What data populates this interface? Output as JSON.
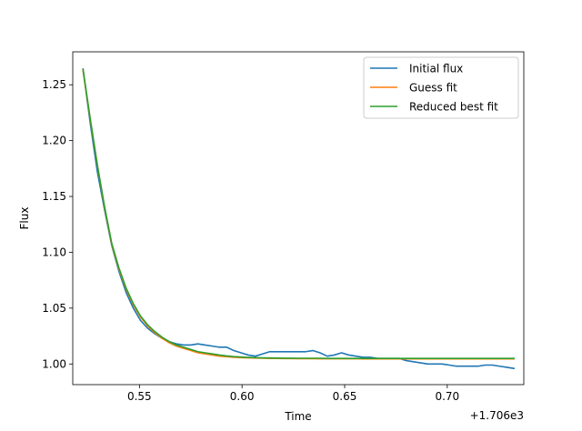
{
  "chart_data": {
    "type": "line",
    "title": "",
    "xlabel": "Time",
    "ylabel": "Flux",
    "x_offset_label": "+1.706e3",
    "xlim": [
      0.5175,
      0.7373
    ],
    "ylim": [
      0.9815,
      1.2795
    ],
    "x_ticks": [
      0.55,
      0.6,
      0.65,
      0.7
    ],
    "x_tick_labels": [
      "0.55",
      "0.60",
      "0.65",
      "0.70"
    ],
    "y_ticks": [
      1.0,
      1.05,
      1.1,
      1.15,
      1.2,
      1.25
    ],
    "y_tick_labels": [
      "1.00",
      "1.05",
      "1.10",
      "1.15",
      "1.20",
      "1.25"
    ],
    "grid": false,
    "legend_position": "upper right",
    "x": [
      0.5225,
      0.526,
      0.5295,
      0.533,
      0.5365,
      0.54,
      0.5435,
      0.547,
      0.5505,
      0.554,
      0.5575,
      0.561,
      0.5645,
      0.568,
      0.5715,
      0.575,
      0.5785,
      0.582,
      0.5855,
      0.589,
      0.5925,
      0.596,
      0.5995,
      0.603,
      0.6065,
      0.61,
      0.6135,
      0.617,
      0.6205,
      0.624,
      0.6275,
      0.631,
      0.6345,
      0.638,
      0.6415,
      0.645,
      0.6485,
      0.652,
      0.6555,
      0.659,
      0.6625,
      0.666,
      0.6695,
      0.673,
      0.6765,
      0.68,
      0.6835,
      0.687,
      0.6905,
      0.694,
      0.6975,
      0.701,
      0.7045,
      0.708,
      0.7115,
      0.715,
      0.7185,
      0.722,
      0.7255,
      0.729,
      0.7325
    ],
    "series": [
      {
        "name": "Initial flux",
        "color": "#1f77b4",
        "values": [
          1.264,
          1.216,
          1.172,
          1.138,
          1.106,
          1.083,
          1.064,
          1.05,
          1.039,
          1.032,
          1.027,
          1.023,
          1.02,
          1.018,
          1.017,
          1.017,
          1.018,
          1.017,
          1.016,
          1.015,
          1.015,
          1.012,
          1.01,
          1.008,
          1.007,
          1.009,
          1.011,
          1.011,
          1.011,
          1.011,
          1.011,
          1.011,
          1.012,
          1.01,
          1.007,
          1.008,
          1.01,
          1.008,
          1.007,
          1.006,
          1.006,
          1.005,
          1.005,
          1.005,
          1.005,
          1.003,
          1.002,
          1.001,
          1.0,
          1.0,
          1.0,
          0.999,
          0.998,
          0.998,
          0.998,
          0.998,
          0.999,
          0.999,
          0.998,
          0.997,
          0.996
        ]
      },
      {
        "name": "Guess fit",
        "color": "#ff7f0e",
        "values": [
          1.263,
          1.219,
          1.178,
          1.14,
          1.107,
          1.085,
          1.067,
          1.053,
          1.042,
          1.034,
          1.028,
          1.023,
          1.019,
          1.016,
          1.014,
          1.012,
          1.01,
          1.009,
          1.008,
          1.007,
          1.0065,
          1.006,
          1.0057,
          1.0055,
          1.0053,
          1.0051,
          1.005,
          1.0049,
          1.0048,
          1.0048,
          1.0047,
          1.0047,
          1.0047,
          1.0046,
          1.0046,
          1.0046,
          1.0046,
          1.0046,
          1.0046,
          1.0045,
          1.0045,
          1.0045,
          1.0045,
          1.0045,
          1.0045,
          1.0045,
          1.0045,
          1.0045,
          1.0045,
          1.0045,
          1.0045,
          1.0045,
          1.0045,
          1.0045,
          1.0045,
          1.0045,
          1.0045,
          1.0045,
          1.0045,
          1.0045,
          1.0045
        ]
      },
      {
        "name": "Reduced best fit",
        "color": "#2ca02c",
        "values": [
          1.264,
          1.22,
          1.178,
          1.141,
          1.108,
          1.086,
          1.068,
          1.054,
          1.043,
          1.035,
          1.029,
          1.024,
          1.02,
          1.017,
          1.015,
          1.013,
          1.011,
          1.01,
          1.009,
          1.008,
          1.0072,
          1.0066,
          1.0062,
          1.0059,
          1.0057,
          1.0055,
          1.0054,
          1.0053,
          1.0052,
          1.0052,
          1.0051,
          1.0051,
          1.0051,
          1.0051,
          1.005,
          1.005,
          1.005,
          1.005,
          1.005,
          1.005,
          1.005,
          1.005,
          1.005,
          1.005,
          1.005,
          1.005,
          1.005,
          1.005,
          1.005,
          1.005,
          1.005,
          1.005,
          1.005,
          1.005,
          1.005,
          1.005,
          1.005,
          1.005,
          1.005,
          1.005,
          1.005
        ]
      }
    ]
  }
}
